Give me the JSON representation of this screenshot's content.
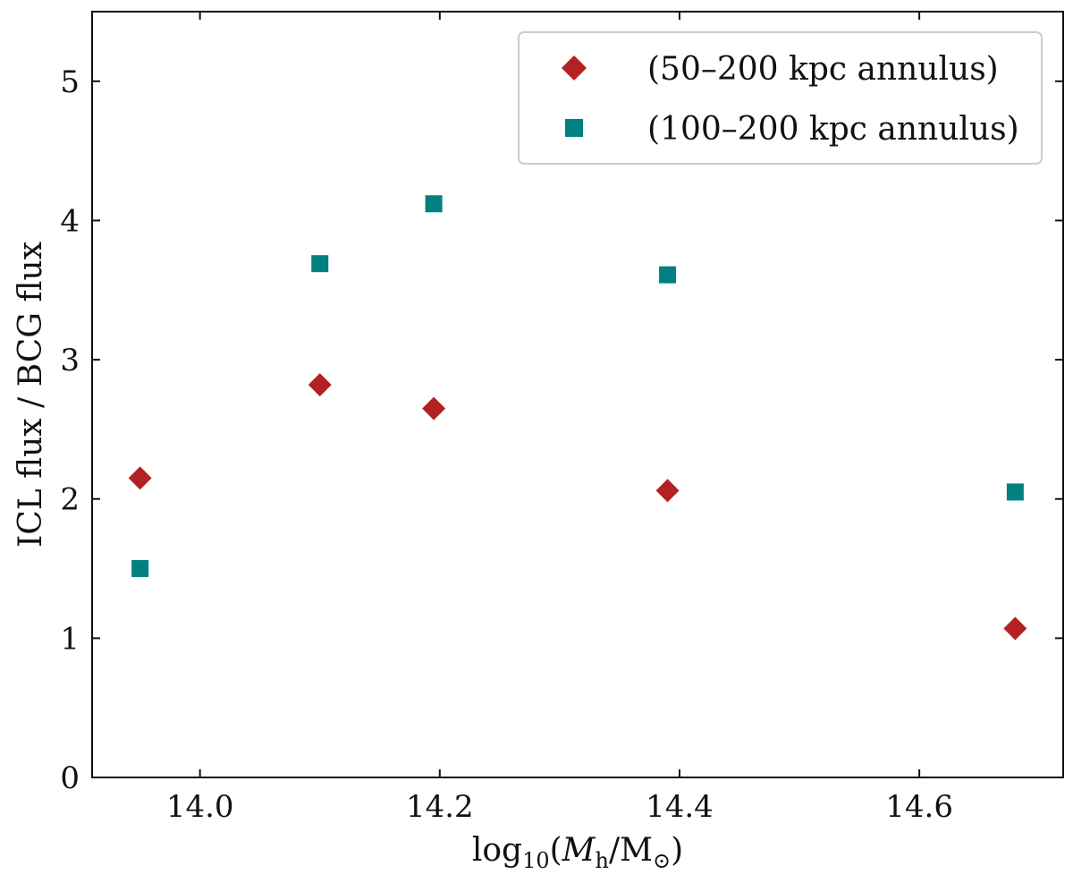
{
  "chart_data": {
    "type": "scatter",
    "title": "",
    "xlabel": "log10(Mh/M⊙)",
    "ylabel": "ICL flux / BCG flux",
    "xlim": [
      13.91,
      14.72
    ],
    "ylim": [
      0,
      5.5
    ],
    "xticks": [
      14.0,
      14.2,
      14.4,
      14.6
    ],
    "xtick_labels": [
      "14.0",
      "14.2",
      "14.4",
      "14.6"
    ],
    "yticks": [
      0,
      1,
      2,
      3,
      4,
      5
    ],
    "ytick_labels": [
      "0",
      "1",
      "2",
      "3",
      "4",
      "5"
    ],
    "grid": false,
    "legend_position": "top-right",
    "series": [
      {
        "name": "(50–200 kpc annulus)",
        "marker": "diamond",
        "color": "#b22222",
        "x": [
          13.95,
          14.1,
          14.195,
          14.39,
          14.68
        ],
        "y": [
          2.15,
          2.82,
          2.65,
          2.06,
          1.07
        ]
      },
      {
        "name": "(100–200 kpc annulus)",
        "marker": "square",
        "color": "#008080",
        "x": [
          13.95,
          14.1,
          14.195,
          14.39,
          14.68
        ],
        "y": [
          1.5,
          3.69,
          4.12,
          3.61,
          2.05
        ]
      }
    ]
  }
}
